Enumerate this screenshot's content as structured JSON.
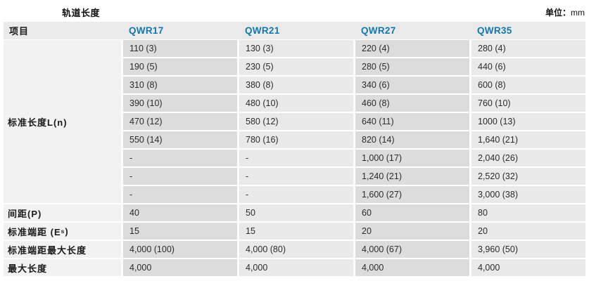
{
  "page": {
    "title": "轨道长度",
    "unit_label": "单位：",
    "unit_value": "mm"
  },
  "colors": {
    "accent_blue": "#1377ad",
    "header_bg": "#eaeaea",
    "cell_dark": "#dcdcdc",
    "cell_light": "#e9e9e9",
    "label_bg": "#f2f2f2"
  },
  "table": {
    "columns": [
      "项目",
      "QWR17",
      "QWR21",
      "QWR27",
      "QWR35"
    ],
    "standard_length": {
      "label": "标准长度L(n)",
      "rows": [
        [
          "110 (3)",
          "130 (3)",
          "220 (4)",
          "280 (4)"
        ],
        [
          "190 (5)",
          "230 (5)",
          "280 (5)",
          "440 (6)"
        ],
        [
          "310 (8)",
          "380 (8)",
          "340 (6)",
          "600 (8)"
        ],
        [
          "390 (10)",
          "480 (10)",
          "460 (8)",
          "760 (10)"
        ],
        [
          "470 (12)",
          "580 (12)",
          "640 (11)",
          "1000 (13)"
        ],
        [
          "550 (14)",
          "780 (16)",
          "820 (14)",
          "1,640 (21)"
        ],
        [
          "-",
          "-",
          "1,000 (17)",
          "2,040 (26)"
        ],
        [
          "-",
          "-",
          "1,240 (21)",
          "2,520 (32)"
        ],
        [
          "-",
          "-",
          "1,600 (27)",
          "3,000 (38)"
        ]
      ]
    },
    "footer_rows": {
      "pitch": {
        "label": "间距(P)",
        "values": [
          "40",
          "50",
          "60",
          "80"
        ]
      },
      "end_dist": {
        "label_prefix": "标准端距 (E",
        "label_sub": "s",
        "label_suffix": ")",
        "values": [
          "15",
          "15",
          "20",
          "20"
        ]
      },
      "end_dist_max": {
        "label": "标准端距最大长度",
        "values": [
          "4,000 (100)",
          "4,000 (80)",
          "4,000 (67)",
          "3,960 (50)"
        ]
      },
      "max_length": {
        "label": "最大长度",
        "values": [
          "4,000",
          "4,000",
          "4,000",
          "4,000"
        ]
      }
    }
  }
}
